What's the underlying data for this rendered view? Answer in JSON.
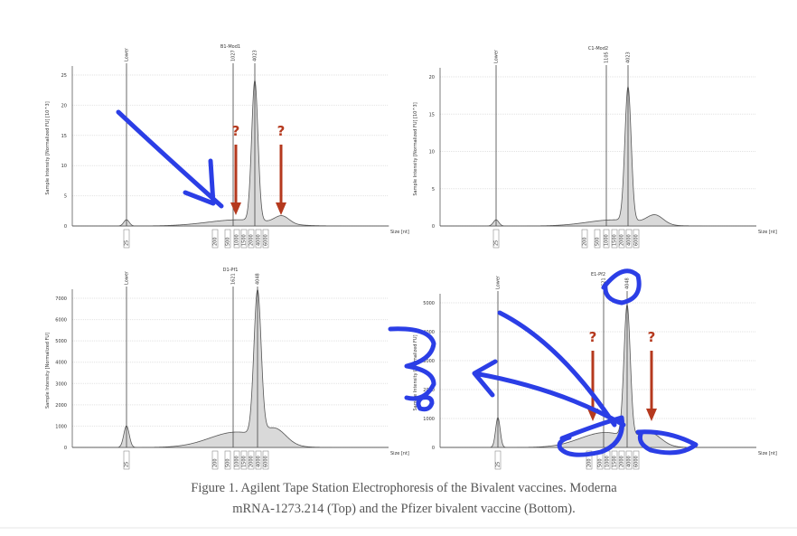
{
  "figure": {
    "panels": [
      {
        "title": "B1-Mod1",
        "ylabel": "Sample Intensity [Normalized FU] [10^3]",
        "yticks": [
          "0",
          "5",
          "10",
          "15",
          "20",
          "25"
        ],
        "markers": [
          "Lower",
          "1027",
          "4023"
        ],
        "xlabels": [
          "25",
          "200",
          "500",
          "1000",
          "1500",
          "2000",
          "4000",
          "6000"
        ],
        "xunit": "Size [nt]",
        "annotations": [
          "?",
          "?"
        ]
      },
      {
        "title": "C1-Mod2",
        "ylabel": "Sample Intensity [Normalized FU] [10^3]",
        "yticks": [
          "0",
          "5",
          "10",
          "15",
          "20"
        ],
        "markers": [
          "Lower",
          "1105",
          "4023"
        ],
        "xlabels": [
          "25",
          "200",
          "500",
          "1000",
          "1500",
          "2000",
          "4000",
          "6000"
        ],
        "xunit": "Size [nt]",
        "annotations": []
      },
      {
        "title": "D1-Pf1",
        "ylabel": "Sample Intensity [Normalized FU]",
        "yticks": [
          "0",
          "1000",
          "2000",
          "3000",
          "4000",
          "5000",
          "6000",
          "7000"
        ],
        "markers": [
          "Lower",
          "1621",
          "4048"
        ],
        "xlabels": [
          "25",
          "200",
          "500",
          "1000",
          "1500",
          "2000",
          "4000",
          "6000"
        ],
        "xunit": "Size [nt]",
        "annotations": []
      },
      {
        "title": "E1-Pf2",
        "ylabel": "Sample Intensity [Normalized FU]",
        "yticks": [
          "0",
          "1000",
          "2000",
          "3000",
          "4000",
          "5000"
        ],
        "markers": [
          "Lower",
          "1621",
          "4048"
        ],
        "xlabels": [
          "25",
          "200",
          "500",
          "1000",
          "1500",
          "2000",
          "4000",
          "6000"
        ],
        "xunit": "Size [nt]",
        "annotations": [
          "?",
          "?"
        ]
      }
    ],
    "caption": [
      "Figure 1. Agilent Tape Station Electrophoresis of the Bivalent vaccines. Moderna",
      "mRNA-1273.214 (Top) and the Pfizer bivalent vaccine (Bottom)."
    ]
  }
}
